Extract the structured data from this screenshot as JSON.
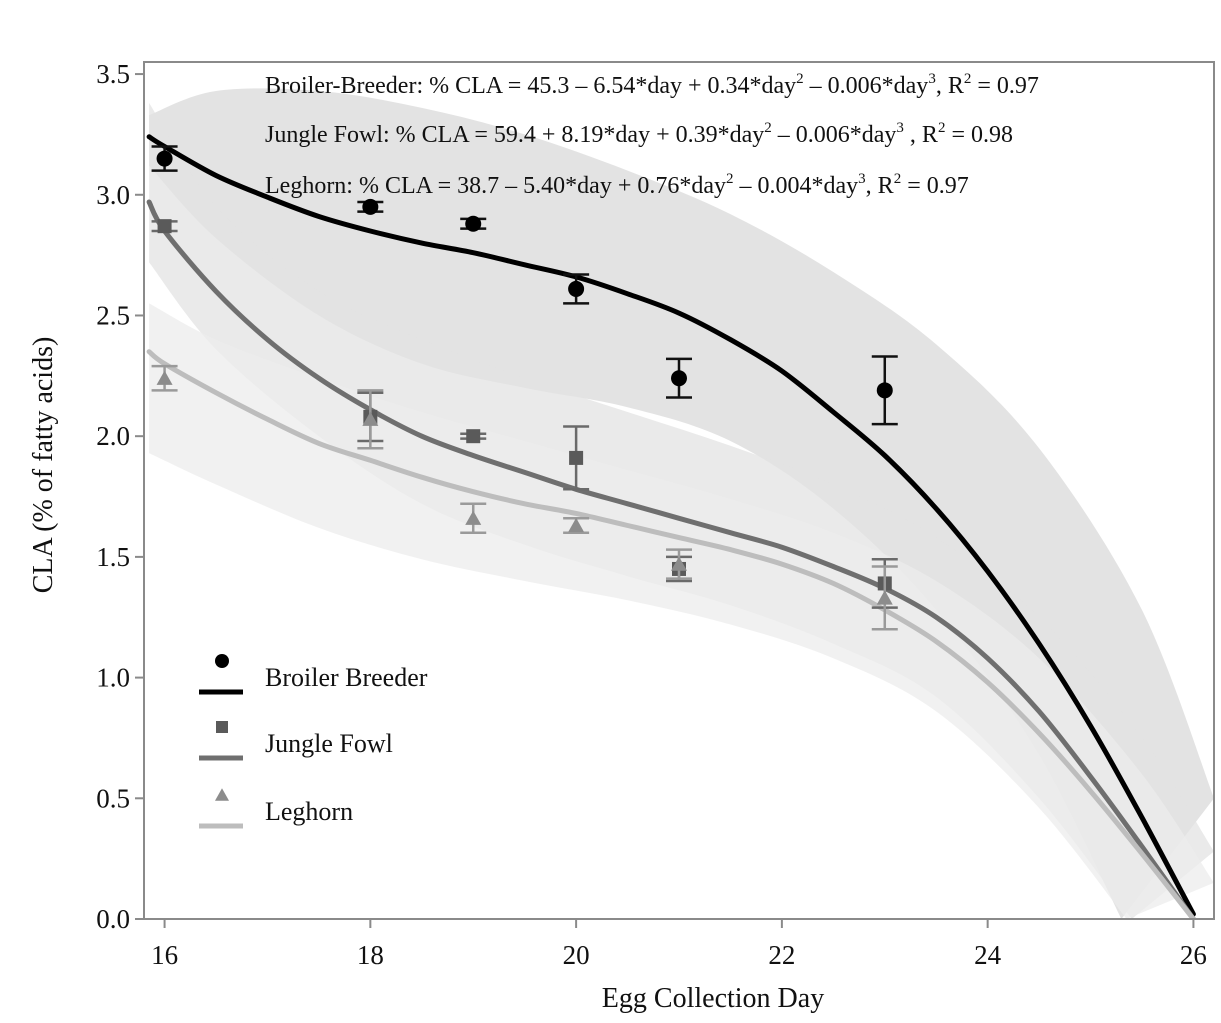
{
  "chart_data": {
    "type": "scatter",
    "xlabel": "Egg Collection Day",
    "ylabel": "CLA (% of fatty acids)",
    "xlim": [
      15.8,
      26.2
    ],
    "ylim": [
      0,
      3.55
    ],
    "x_ticks": [
      "16",
      "18",
      "20",
      "22",
      "24",
      "26"
    ],
    "y_ticks": [
      "0.0",
      "0.5",
      "1.0",
      "1.5",
      "2.0",
      "2.5",
      "3.0",
      "3.5"
    ],
    "grid": false,
    "legend_position": "bottom-left",
    "equations": [
      {
        "parts": [
          "Broiler-Breeder:  % CLA = 45.3 – 6.54*day + 0.34*day",
          "2",
          " – 0.006*day",
          "3",
          ", R",
          "2",
          " = 0.97"
        ]
      },
      {
        "parts": [
          "Jungle Fowl: % CLA = 59.4 + 8.19*day + 0.39*day",
          "2",
          " – 0.006*day",
          "3",
          " , R",
          "2",
          " = 0.98"
        ]
      },
      {
        "parts": [
          "Leghorn: % CLA = 38.7 – 5.40*day + 0.76*day",
          "2",
          " – 0.004*day",
          "3",
          ", R",
          "2",
          " = 0.97"
        ]
      }
    ],
    "series": [
      {
        "name": "Broiler Breeder",
        "marker": "circle",
        "color": "#000000",
        "line_color": "#000000",
        "points": [
          {
            "x": 16,
            "y": 3.15,
            "err": 0.05
          },
          {
            "x": 18,
            "y": 2.95,
            "err": 0.02
          },
          {
            "x": 19,
            "y": 2.88,
            "err": 0.02
          },
          {
            "x": 20,
            "y": 2.61,
            "err": 0.06
          },
          {
            "x": 21,
            "y": 2.24,
            "err": 0.08
          },
          {
            "x": 23,
            "y": 2.19,
            "err": 0.14
          }
        ],
        "fit": [
          {
            "x": 15.85,
            "y": 3.24
          },
          {
            "x": 16,
            "y": 3.2
          },
          {
            "x": 16.5,
            "y": 3.08
          },
          {
            "x": 17,
            "y": 2.99
          },
          {
            "x": 17.5,
            "y": 2.91
          },
          {
            "x": 18,
            "y": 2.85
          },
          {
            "x": 18.5,
            "y": 2.8
          },
          {
            "x": 19,
            "y": 2.76
          },
          {
            "x": 19.5,
            "y": 2.71
          },
          {
            "x": 20,
            "y": 2.66
          },
          {
            "x": 20.5,
            "y": 2.59
          },
          {
            "x": 21,
            "y": 2.51
          },
          {
            "x": 21.5,
            "y": 2.4
          },
          {
            "x": 22,
            "y": 2.27
          },
          {
            "x": 22.5,
            "y": 2.1
          },
          {
            "x": 23,
            "y": 1.92
          },
          {
            "x": 23.5,
            "y": 1.7
          },
          {
            "x": 24,
            "y": 1.44
          },
          {
            "x": 24.5,
            "y": 1.14
          },
          {
            "x": 25,
            "y": 0.8
          },
          {
            "x": 25.5,
            "y": 0.42
          },
          {
            "x": 26,
            "y": 0.02
          }
        ],
        "band_upper": [
          {
            "x": 15.85,
            "y": 3.33
          },
          {
            "x": 16.5,
            "y": 3.43
          },
          {
            "x": 17.5,
            "y": 3.43
          },
          {
            "x": 18.5,
            "y": 3.36
          },
          {
            "x": 19.5,
            "y": 3.25
          },
          {
            "x": 20.5,
            "y": 3.1
          },
          {
            "x": 21.5,
            "y": 2.92
          },
          {
            "x": 22.5,
            "y": 2.68
          },
          {
            "x": 23.5,
            "y": 2.38
          },
          {
            "x": 24.5,
            "y": 1.95
          },
          {
            "x": 25.5,
            "y": 1.28
          },
          {
            "x": 26.2,
            "y": 0.5
          }
        ],
        "band_lower": [
          {
            "x": 15.85,
            "y": 3.12
          },
          {
            "x": 16.5,
            "y": 2.82
          },
          {
            "x": 17.5,
            "y": 2.5
          },
          {
            "x": 18.5,
            "y": 2.3
          },
          {
            "x": 19.5,
            "y": 2.2
          },
          {
            "x": 20.5,
            "y": 2.12
          },
          {
            "x": 21.5,
            "y": 1.98
          },
          {
            "x": 22.5,
            "y": 1.7
          },
          {
            "x": 23.5,
            "y": 1.28
          },
          {
            "x": 24.5,
            "y": 0.68
          },
          {
            "x": 25.3,
            "y": 0.0
          }
        ]
      },
      {
        "name": "Jungle Fowl",
        "marker": "square",
        "color": "#5a5a5a",
        "line_color": "#6f6f6f",
        "points": [
          {
            "x": 16,
            "y": 2.87,
            "err": 0.02
          },
          {
            "x": 18,
            "y": 2.08,
            "err": 0.1
          },
          {
            "x": 19,
            "y": 2.0,
            "err": 0.01
          },
          {
            "x": 20,
            "y": 1.91,
            "err": 0.13
          },
          {
            "x": 21,
            "y": 1.45,
            "err": 0.05
          },
          {
            "x": 23,
            "y": 1.39,
            "err": 0.1
          }
        ],
        "fit": [
          {
            "x": 15.85,
            "y": 2.97
          },
          {
            "x": 16,
            "y": 2.85
          },
          {
            "x": 16.5,
            "y": 2.6
          },
          {
            "x": 17,
            "y": 2.4
          },
          {
            "x": 17.5,
            "y": 2.24
          },
          {
            "x": 18,
            "y": 2.11
          },
          {
            "x": 18.5,
            "y": 2.0
          },
          {
            "x": 19,
            "y": 1.92
          },
          {
            "x": 19.5,
            "y": 1.85
          },
          {
            "x": 20,
            "y": 1.78
          },
          {
            "x": 20.5,
            "y": 1.72
          },
          {
            "x": 21,
            "y": 1.66
          },
          {
            "x": 21.5,
            "y": 1.6
          },
          {
            "x": 22,
            "y": 1.54
          },
          {
            "x": 22.5,
            "y": 1.46
          },
          {
            "x": 23,
            "y": 1.37
          },
          {
            "x": 23.5,
            "y": 1.25
          },
          {
            "x": 24,
            "y": 1.08
          },
          {
            "x": 24.5,
            "y": 0.86
          },
          {
            "x": 25,
            "y": 0.59
          },
          {
            "x": 25.5,
            "y": 0.3
          },
          {
            "x": 26,
            "y": 0.0
          }
        ],
        "band_upper": [
          {
            "x": 15.85,
            "y": 3.38
          },
          {
            "x": 16.5,
            "y": 2.95
          },
          {
            "x": 17.5,
            "y": 2.6
          },
          {
            "x": 18.5,
            "y": 2.4
          },
          {
            "x": 19.5,
            "y": 2.24
          },
          {
            "x": 20.5,
            "y": 2.1
          },
          {
            "x": 21.5,
            "y": 1.96
          },
          {
            "x": 22.5,
            "y": 1.8
          },
          {
            "x": 23.5,
            "y": 1.58
          },
          {
            "x": 24.5,
            "y": 1.25
          },
          {
            "x": 25.5,
            "y": 0.75
          },
          {
            "x": 26.2,
            "y": 0.28
          }
        ],
        "band_lower": [
          {
            "x": 15.85,
            "y": 2.72
          },
          {
            "x": 16.5,
            "y": 2.36
          },
          {
            "x": 17.5,
            "y": 2.0
          },
          {
            "x": 18.5,
            "y": 1.72
          },
          {
            "x": 19.5,
            "y": 1.55
          },
          {
            "x": 20.5,
            "y": 1.42
          },
          {
            "x": 21.5,
            "y": 1.3
          },
          {
            "x": 22.5,
            "y": 1.14
          },
          {
            "x": 23.5,
            "y": 0.92
          },
          {
            "x": 24.5,
            "y": 0.5
          },
          {
            "x": 25.4,
            "y": 0.0
          }
        ]
      },
      {
        "name": "Leghorn",
        "marker": "triangle",
        "color": "#8c8c8c",
        "line_color": "#bdbdbd",
        "points": [
          {
            "x": 16,
            "y": 2.24,
            "err": 0.05
          },
          {
            "x": 18,
            "y": 2.07,
            "err": 0.12
          },
          {
            "x": 19,
            "y": 1.66,
            "err": 0.06
          },
          {
            "x": 20,
            "y": 1.63,
            "err": 0.03
          },
          {
            "x": 21,
            "y": 1.47,
            "err": 0.06
          },
          {
            "x": 23,
            "y": 1.33,
            "err": 0.13
          }
        ],
        "fit": [
          {
            "x": 15.85,
            "y": 2.35
          },
          {
            "x": 16,
            "y": 2.3
          },
          {
            "x": 16.5,
            "y": 2.18
          },
          {
            "x": 17,
            "y": 2.07
          },
          {
            "x": 17.5,
            "y": 1.97
          },
          {
            "x": 18,
            "y": 1.9
          },
          {
            "x": 18.5,
            "y": 1.83
          },
          {
            "x": 19,
            "y": 1.77
          },
          {
            "x": 19.5,
            "y": 1.72
          },
          {
            "x": 20,
            "y": 1.68
          },
          {
            "x": 20.5,
            "y": 1.63
          },
          {
            "x": 21,
            "y": 1.58
          },
          {
            "x": 21.5,
            "y": 1.53
          },
          {
            "x": 22,
            "y": 1.47
          },
          {
            "x": 22.5,
            "y": 1.39
          },
          {
            "x": 23,
            "y": 1.28
          },
          {
            "x": 23.5,
            "y": 1.15
          },
          {
            "x": 24,
            "y": 0.98
          },
          {
            "x": 24.5,
            "y": 0.77
          },
          {
            "x": 25,
            "y": 0.53
          },
          {
            "x": 25.5,
            "y": 0.27
          },
          {
            "x": 26,
            "y": 0.0
          }
        ],
        "band_upper": [
          {
            "x": 15.85,
            "y": 2.55
          },
          {
            "x": 16.5,
            "y": 2.4
          },
          {
            "x": 17.5,
            "y": 2.24
          },
          {
            "x": 18.5,
            "y": 2.1
          },
          {
            "x": 19.5,
            "y": 1.98
          },
          {
            "x": 20.5,
            "y": 1.86
          },
          {
            "x": 21.5,
            "y": 1.74
          },
          {
            "x": 22.5,
            "y": 1.6
          },
          {
            "x": 23.5,
            "y": 1.4
          },
          {
            "x": 24.5,
            "y": 1.08
          },
          {
            "x": 25.5,
            "y": 0.6
          },
          {
            "x": 26.2,
            "y": 0.15
          }
        ],
        "band_lower": [
          {
            "x": 15.85,
            "y": 1.93
          },
          {
            "x": 16.5,
            "y": 1.8
          },
          {
            "x": 17.5,
            "y": 1.62
          },
          {
            "x": 18.5,
            "y": 1.49
          },
          {
            "x": 19.5,
            "y": 1.4
          },
          {
            "x": 20.5,
            "y": 1.32
          },
          {
            "x": 21.5,
            "y": 1.22
          },
          {
            "x": 22.5,
            "y": 1.08
          },
          {
            "x": 23.5,
            "y": 0.86
          },
          {
            "x": 24.5,
            "y": 0.46
          },
          {
            "x": 25.35,
            "y": 0.0
          }
        ]
      }
    ]
  }
}
